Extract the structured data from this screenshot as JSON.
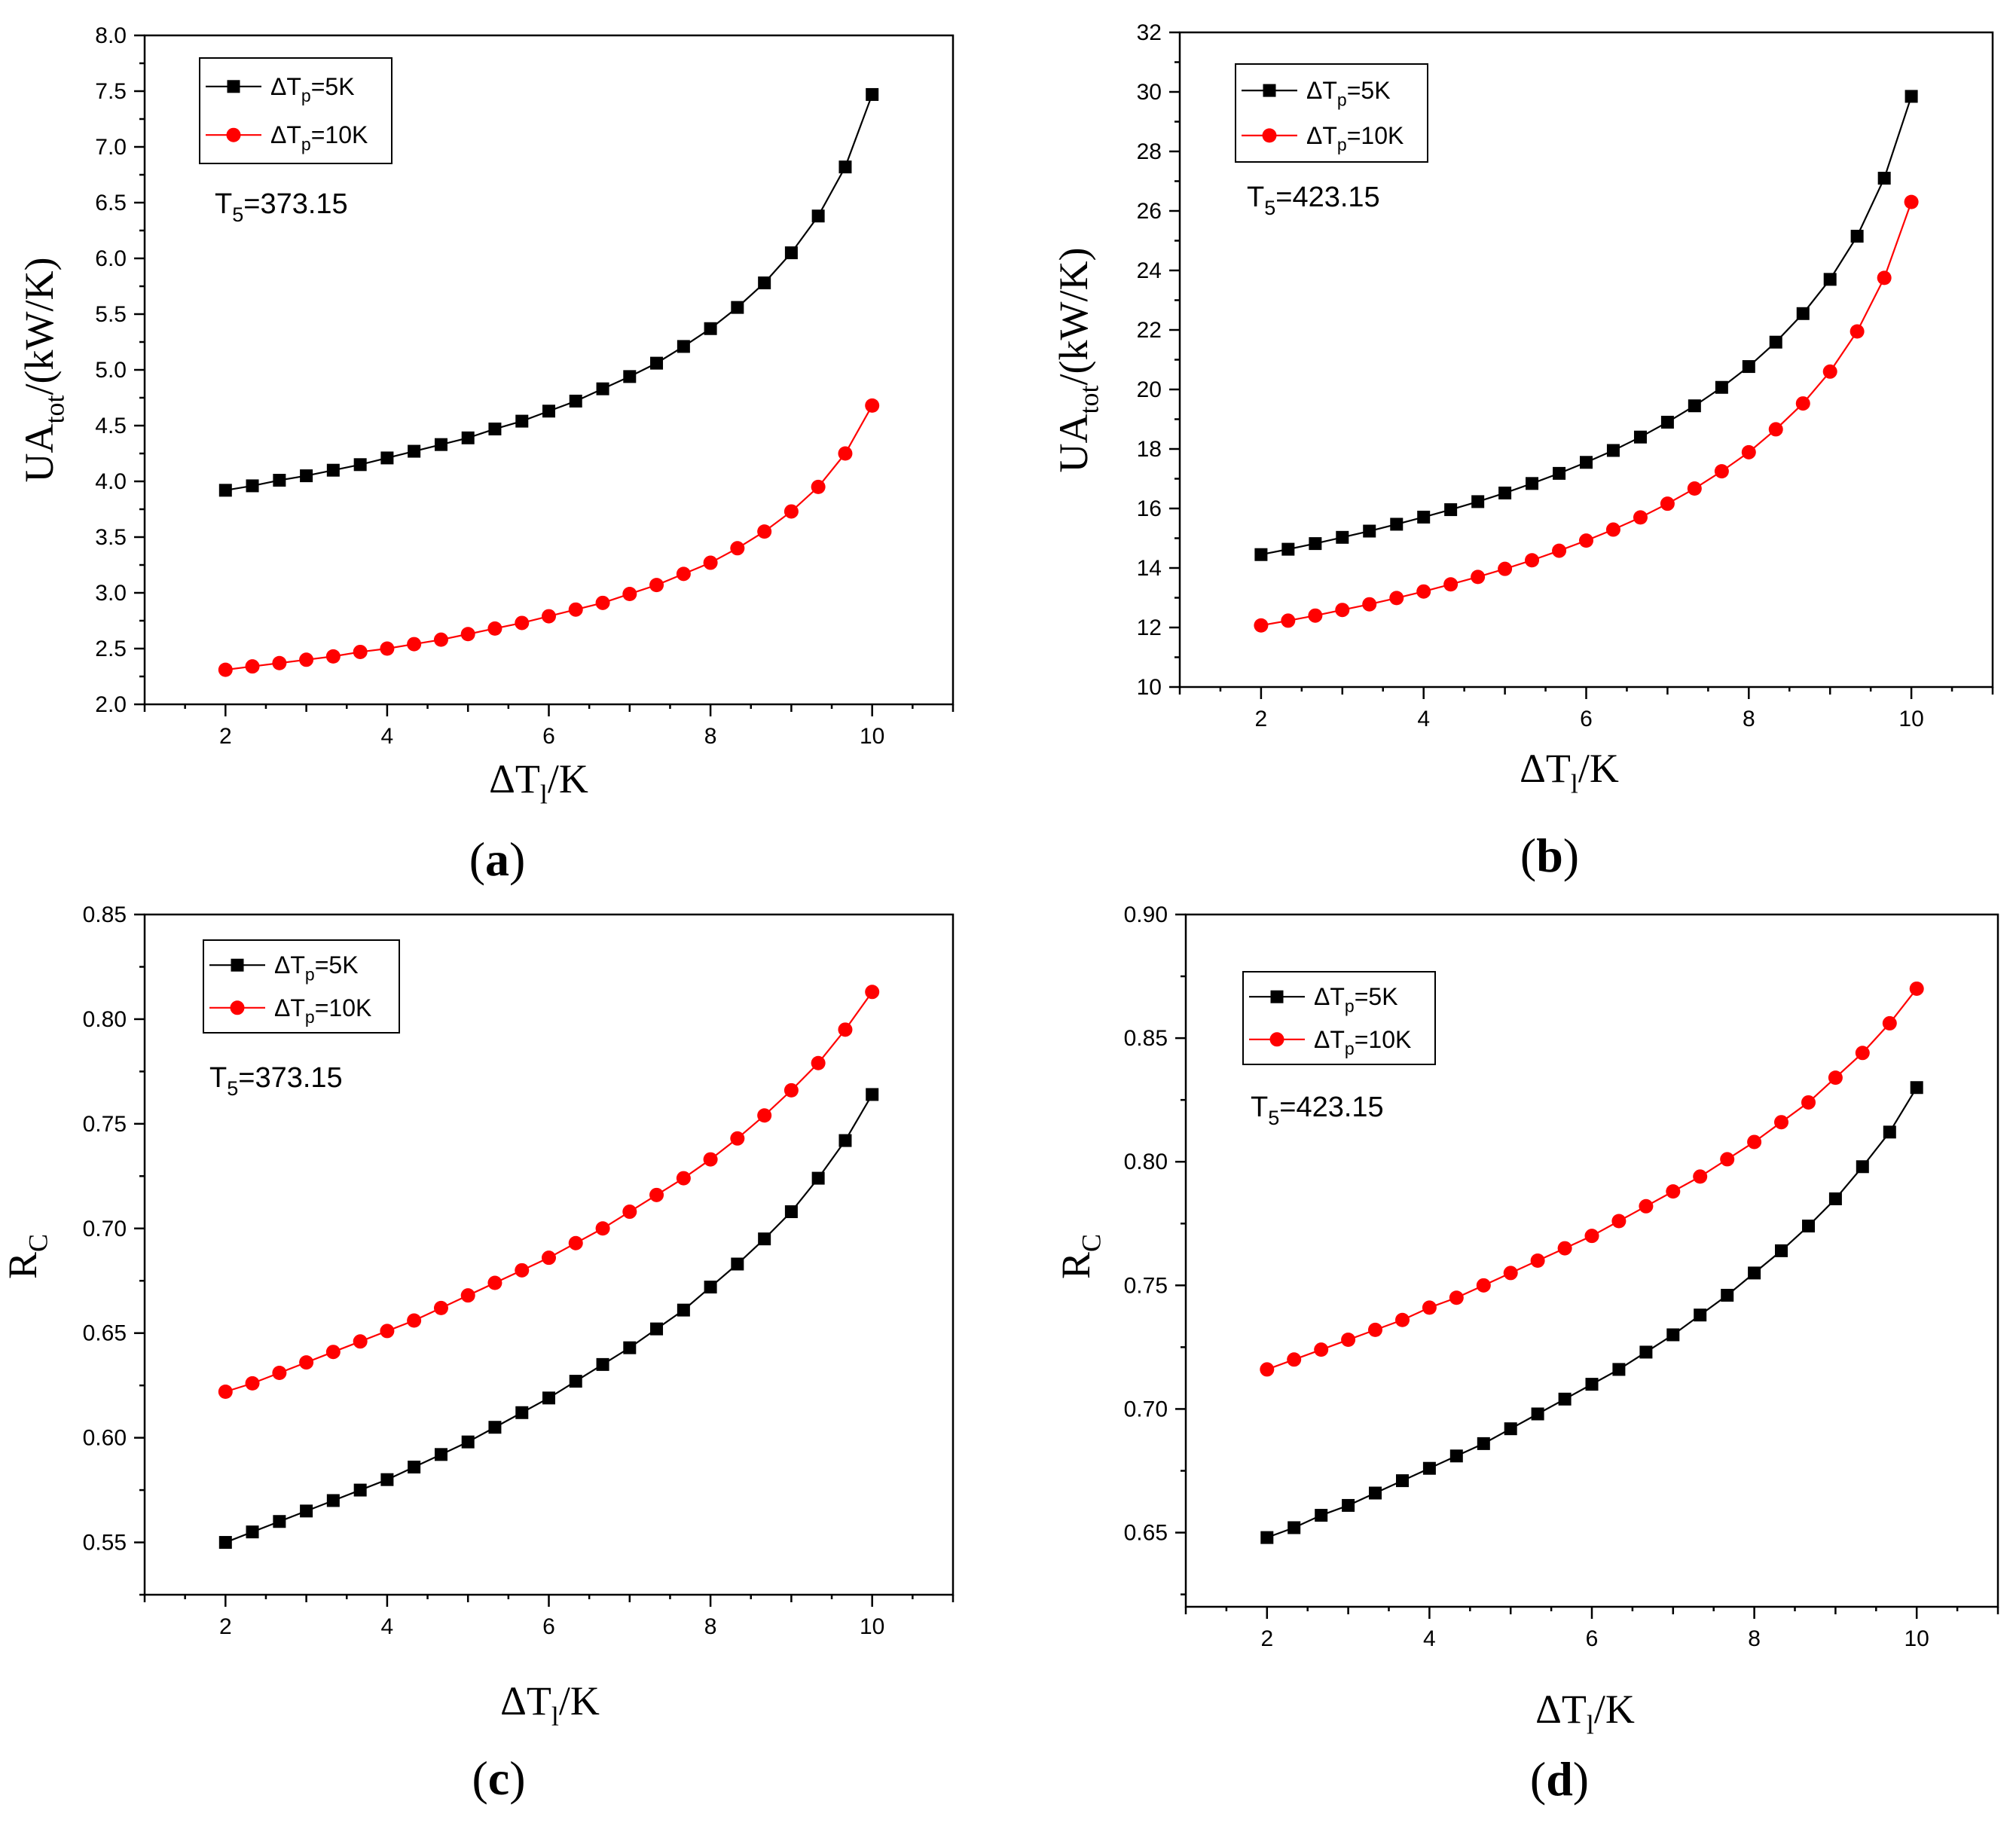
{
  "chart_data": [
    {
      "type": "line",
      "panel_label": "a",
      "title": "",
      "xlabel": {
        "base": "ΔT",
        "sub": "l",
        "suffix": "/K"
      },
      "ylabel": {
        "base": "UA",
        "sub": "tot",
        "suffix": "/(kW/K)"
      },
      "xlim": [
        1,
        11
      ],
      "ylim": [
        2.0,
        8.0
      ],
      "xticks": [
        2,
        4,
        6,
        8,
        10
      ],
      "yticks": [
        2.0,
        2.5,
        3.0,
        3.5,
        4.0,
        4.5,
        5.0,
        5.5,
        6.0,
        6.5,
        7.0,
        7.5,
        8.0
      ],
      "ytick_labels": [
        "2.0",
        "2.5",
        "3.0",
        "3.5",
        "4.0",
        "4.5",
        "5.0",
        "5.5",
        "6.0",
        "6.5",
        "7.0",
        "7.5",
        "8.0"
      ],
      "legend_placement": "top-left",
      "annotation": {
        "base": "T",
        "sub": "5",
        "suffix": "=373.15"
      },
      "x": [
        2.0,
        2.333,
        2.667,
        3.0,
        3.333,
        3.667,
        4.0,
        4.333,
        4.667,
        5.0,
        5.333,
        5.667,
        6.0,
        6.333,
        6.667,
        7.0,
        7.333,
        7.667,
        8.0,
        8.333,
        8.667,
        9.0,
        9.333,
        9.667,
        10.0
      ],
      "series": [
        {
          "name": "ΔTp=5K",
          "label": {
            "base": "ΔT",
            "sub": "p",
            "suffix": "=5K"
          },
          "marker": "square",
          "color": "#000000",
          "values": [
            3.92,
            3.96,
            4.01,
            4.05,
            4.1,
            4.15,
            4.21,
            4.27,
            4.33,
            4.39,
            4.47,
            4.54,
            4.63,
            4.72,
            4.83,
            4.94,
            5.06,
            5.21,
            5.37,
            5.56,
            5.78,
            6.05,
            6.38,
            6.82,
            7.47
          ]
        },
        {
          "name": "ΔTp=10K",
          "label": {
            "base": "ΔT",
            "sub": "p",
            "suffix": "=10K"
          },
          "marker": "circle",
          "color": "#ff0000",
          "values": [
            2.31,
            2.34,
            2.37,
            2.4,
            2.43,
            2.47,
            2.5,
            2.54,
            2.58,
            2.63,
            2.68,
            2.73,
            2.79,
            2.85,
            2.91,
            2.99,
            3.07,
            3.17,
            3.27,
            3.4,
            3.55,
            3.73,
            3.95,
            4.25,
            4.68
          ]
        }
      ]
    },
    {
      "type": "line",
      "panel_label": "b",
      "title": "",
      "xlabel": {
        "base": "ΔT",
        "sub": "l",
        "suffix": "/K"
      },
      "ylabel": {
        "base": "UA",
        "sub": "tot",
        "suffix": "/(kW/K)"
      },
      "xlim": [
        1,
        11
      ],
      "ylim": [
        10,
        32
      ],
      "xticks": [
        2,
        4,
        6,
        8,
        10
      ],
      "yticks": [
        10,
        12,
        14,
        16,
        18,
        20,
        22,
        24,
        26,
        28,
        30,
        32
      ],
      "ytick_labels": [
        "10",
        "12",
        "14",
        "16",
        "18",
        "20",
        "22",
        "24",
        "26",
        "28",
        "30",
        "32"
      ],
      "legend_placement": "top-left",
      "annotation": {
        "base": "T",
        "sub": "5",
        "suffix": "=423.15"
      },
      "x": [
        2.0,
        2.333,
        2.667,
        3.0,
        3.333,
        3.667,
        4.0,
        4.333,
        4.667,
        5.0,
        5.333,
        5.667,
        6.0,
        6.333,
        6.667,
        7.0,
        7.333,
        7.667,
        8.0,
        8.333,
        8.667,
        9.0,
        9.333,
        9.667,
        10.0
      ],
      "series": [
        {
          "name": "ΔTp=5K",
          "label": {
            "base": "ΔT",
            "sub": "p",
            "suffix": "=5K"
          },
          "marker": "square",
          "color": "#000000",
          "values": [
            14.45,
            14.63,
            14.82,
            15.03,
            15.24,
            15.47,
            15.71,
            15.96,
            16.23,
            16.52,
            16.84,
            17.18,
            17.55,
            17.95,
            18.4,
            18.9,
            19.45,
            20.07,
            20.77,
            21.59,
            22.55,
            23.7,
            25.15,
            27.1,
            29.85
          ]
        },
        {
          "name": "ΔTp=10K",
          "label": {
            "base": "ΔT",
            "sub": "p",
            "suffix": "=10K"
          },
          "marker": "circle",
          "color": "#ff0000",
          "values": [
            12.07,
            12.23,
            12.4,
            12.59,
            12.78,
            12.99,
            13.21,
            13.45,
            13.7,
            13.97,
            14.26,
            14.58,
            14.92,
            15.29,
            15.7,
            16.16,
            16.67,
            17.25,
            17.89,
            18.66,
            19.53,
            20.6,
            21.95,
            23.75,
            26.3
          ]
        }
      ]
    },
    {
      "type": "line",
      "panel_label": "c",
      "title": "",
      "xlabel": {
        "base": "ΔT",
        "sub": "l",
        "suffix": "/K"
      },
      "ylabel": {
        "base": "R",
        "sub": "C",
        "suffix": ""
      },
      "xlim": [
        1,
        11
      ],
      "ylim": [
        0.525,
        0.85
      ],
      "xticks": [
        2,
        4,
        6,
        8,
        10
      ],
      "yticks": [
        0.55,
        0.6,
        0.65,
        0.7,
        0.75,
        0.8,
        0.85
      ],
      "ytick_labels": [
        "0.55",
        "0.60",
        "0.65",
        "0.70",
        "0.75",
        "0.80",
        "0.85"
      ],
      "legend_placement": "top-left",
      "annotation": {
        "base": "T",
        "sub": "5",
        "suffix": "=373.15"
      },
      "x": [
        2.0,
        2.333,
        2.667,
        3.0,
        3.333,
        3.667,
        4.0,
        4.333,
        4.667,
        5.0,
        5.333,
        5.667,
        6.0,
        6.333,
        6.667,
        7.0,
        7.333,
        7.667,
        8.0,
        8.333,
        8.667,
        9.0,
        9.333,
        9.667,
        10.0
      ],
      "series": [
        {
          "name": "ΔTp=5K",
          "label": {
            "base": "ΔT",
            "sub": "p",
            "suffix": "=5K"
          },
          "marker": "square",
          "color": "#000000",
          "values": [
            0.55,
            0.555,
            0.56,
            0.565,
            0.57,
            0.575,
            0.58,
            0.586,
            0.592,
            0.598,
            0.605,
            0.612,
            0.619,
            0.627,
            0.635,
            0.643,
            0.652,
            0.661,
            0.672,
            0.683,
            0.695,
            0.708,
            0.724,
            0.742,
            0.764
          ]
        },
        {
          "name": "ΔTp=10K",
          "label": {
            "base": "ΔT",
            "sub": "p",
            "suffix": "=10K"
          },
          "marker": "circle",
          "color": "#ff0000",
          "values": [
            0.622,
            0.626,
            0.631,
            0.636,
            0.641,
            0.646,
            0.651,
            0.656,
            0.662,
            0.668,
            0.674,
            0.68,
            0.686,
            0.693,
            0.7,
            0.708,
            0.716,
            0.724,
            0.733,
            0.743,
            0.754,
            0.766,
            0.779,
            0.795,
            0.813
          ]
        }
      ]
    },
    {
      "type": "line",
      "panel_label": "d",
      "title": "",
      "xlabel": {
        "base": "ΔT",
        "sub": "l",
        "suffix": "/K"
      },
      "ylabel": {
        "base": "R",
        "sub": "C",
        "suffix": ""
      },
      "xlim": [
        1,
        11
      ],
      "ylim": [
        0.62,
        0.9
      ],
      "xticks": [
        2,
        4,
        6,
        8,
        10
      ],
      "yticks": [
        0.65,
        0.7,
        0.75,
        0.8,
        0.85,
        0.9
      ],
      "ytick_labels": [
        "0.65",
        "0.70",
        "0.75",
        "0.80",
        "0.85",
        "0.90"
      ],
      "legend_placement": "top-left",
      "annotation": {
        "base": "T",
        "sub": "5",
        "suffix": "=423.15"
      },
      "x": [
        2.0,
        2.333,
        2.667,
        3.0,
        3.333,
        3.667,
        4.0,
        4.333,
        4.667,
        5.0,
        5.333,
        5.667,
        6.0,
        6.333,
        6.667,
        7.0,
        7.333,
        7.667,
        8.0,
        8.333,
        8.667,
        9.0,
        9.333,
        9.667,
        10.0
      ],
      "series": [
        {
          "name": "ΔTp=5K",
          "label": {
            "base": "ΔT",
            "sub": "p",
            "suffix": "=5K"
          },
          "marker": "square",
          "color": "#000000",
          "values": [
            0.648,
            0.652,
            0.657,
            0.661,
            0.666,
            0.671,
            0.676,
            0.681,
            0.686,
            0.692,
            0.698,
            0.704,
            0.71,
            0.716,
            0.723,
            0.73,
            0.738,
            0.746,
            0.755,
            0.764,
            0.774,
            0.785,
            0.798,
            0.812,
            0.83
          ]
        },
        {
          "name": "ΔTp=10K",
          "label": {
            "base": "ΔT",
            "sub": "p",
            "suffix": "=10K"
          },
          "marker": "circle",
          "color": "#ff0000",
          "values": [
            0.716,
            0.72,
            0.724,
            0.728,
            0.732,
            0.736,
            0.741,
            0.745,
            0.75,
            0.755,
            0.76,
            0.765,
            0.77,
            0.776,
            0.782,
            0.788,
            0.794,
            0.801,
            0.808,
            0.816,
            0.824,
            0.834,
            0.844,
            0.856,
            0.87
          ]
        }
      ]
    }
  ]
}
